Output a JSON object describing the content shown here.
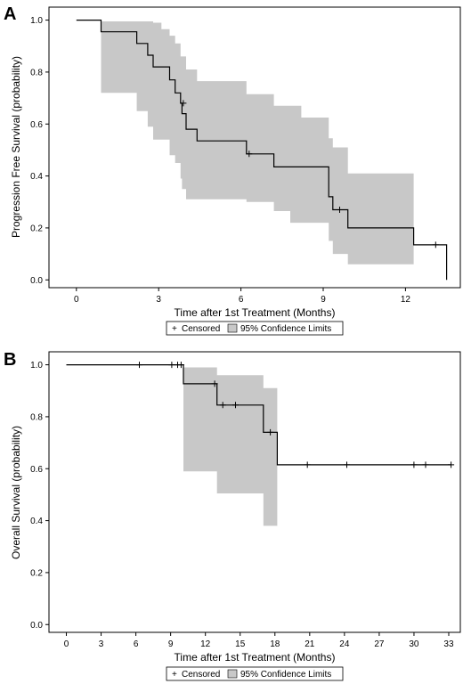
{
  "chart_data": [
    {
      "panel": "A",
      "type": "line",
      "subtype": "kaplan-meier-step",
      "xlabel": "Time after 1st Treatment (Months)",
      "ylabel": "Progression Free Survival (probability)",
      "xlim": [
        -1,
        14
      ],
      "ylim": [
        -0.03,
        1.05
      ],
      "xticks": [
        "0",
        "3",
        "6",
        "9",
        "12"
      ],
      "xtick_values": [
        0,
        3,
        6,
        9,
        12
      ],
      "yticks": [
        "0.0",
        "0.2",
        "0.4",
        "0.6",
        "0.8",
        "1.0"
      ],
      "ytick_values": [
        0,
        0.2,
        0.4,
        0.6,
        0.8,
        1.0
      ],
      "legend": {
        "censored": "Censored",
        "band": "95% Confidence Limits",
        "placement": "bottom-center"
      },
      "colors": {
        "band": "#c8c8c8",
        "line": "#000000"
      },
      "series": [
        {
          "role": "survival",
          "steps": [
            [
              0,
              1.0
            ],
            [
              0.9,
              0.955
            ],
            [
              2.2,
              0.91
            ],
            [
              2.6,
              0.865
            ],
            [
              2.8,
              0.82
            ],
            [
              3.4,
              0.77
            ],
            [
              3.6,
              0.72
            ],
            [
              3.8,
              0.68
            ],
            [
              3.85,
              0.64
            ],
            [
              4.0,
              0.58
            ],
            [
              4.4,
              0.535
            ],
            [
              6.2,
              0.485
            ],
            [
              7.2,
              0.435
            ],
            [
              9.2,
              0.32
            ],
            [
              9.35,
              0.27
            ],
            [
              9.9,
              0.2
            ],
            [
              12.3,
              0.135
            ],
            [
              13.5,
              0.0
            ]
          ],
          "end_x": 13.5
        },
        {
          "role": "lower_cl",
          "steps": [
            [
              0.9,
              0.72
            ],
            [
              2.2,
              0.65
            ],
            [
              2.6,
              0.59
            ],
            [
              2.8,
              0.54
            ],
            [
              3.4,
              0.48
            ],
            [
              3.6,
              0.45
            ],
            [
              3.8,
              0.39
            ],
            [
              3.85,
              0.35
            ],
            [
              4.0,
              0.31
            ],
            [
              6.2,
              0.3
            ],
            [
              7.2,
              0.265
            ],
            [
              7.8,
              0.22
            ],
            [
              9.2,
              0.15
            ],
            [
              9.35,
              0.1
            ],
            [
              9.9,
              0.06
            ]
          ],
          "end_x": 12.3
        },
        {
          "role": "upper_cl",
          "steps": [
            [
              0.9,
              0.995
            ],
            [
              2.8,
              0.99
            ],
            [
              3.1,
              0.965
            ],
            [
              3.4,
              0.94
            ],
            [
              3.6,
              0.91
            ],
            [
              3.8,
              0.86
            ],
            [
              4.0,
              0.81
            ],
            [
              4.4,
              0.765
            ],
            [
              6.2,
              0.715
            ],
            [
              7.2,
              0.67
            ],
            [
              8.2,
              0.625
            ],
            [
              9.2,
              0.545
            ],
            [
              9.35,
              0.51
            ],
            [
              9.9,
              0.41
            ]
          ],
          "end_x": 12.3
        }
      ],
      "censored": [
        [
          3.9,
          0.68
        ],
        [
          6.3,
          0.485
        ],
        [
          9.6,
          0.27
        ],
        [
          13.1,
          0.135
        ]
      ]
    },
    {
      "panel": "B",
      "type": "line",
      "subtype": "kaplan-meier-step",
      "xlabel": "Time after 1st Treatment (Months)",
      "ylabel": "Overall Survival (probability)",
      "xlim": [
        -1.5,
        34
      ],
      "ylim": [
        -0.03,
        1.05
      ],
      "xticks": [
        "0",
        "3",
        "6",
        "9",
        "12",
        "15",
        "18",
        "21",
        "24",
        "27",
        "30",
        "33"
      ],
      "xtick_values": [
        0,
        3,
        6,
        9,
        12,
        15,
        18,
        21,
        24,
        27,
        30,
        33
      ],
      "yticks": [
        "0.0",
        "0.2",
        "0.4",
        "0.6",
        "0.8",
        "1.0"
      ],
      "ytick_values": [
        0,
        0.2,
        0.4,
        0.6,
        0.8,
        1.0
      ],
      "legend": {
        "censored": "Censored",
        "band": "95% Confidence Limits",
        "placement": "bottom-center"
      },
      "colors": {
        "band": "#c8c8c8",
        "line": "#000000"
      },
      "series": [
        {
          "role": "survival",
          "steps": [
            [
              0,
              1.0
            ],
            [
              10.1,
              0.927
            ],
            [
              13.0,
              0.845
            ],
            [
              17.0,
              0.74
            ],
            [
              18.2,
              0.615
            ]
          ],
          "end_x": 33.2
        },
        {
          "role": "lower_cl",
          "steps": [
            [
              10.1,
              0.59
            ],
            [
              13.0,
              0.505
            ],
            [
              17.0,
              0.38
            ]
          ],
          "end_x": 18.2
        },
        {
          "role": "upper_cl",
          "steps": [
            [
              10.1,
              0.99
            ],
            [
              13.0,
              0.96
            ],
            [
              17.0,
              0.91
            ]
          ],
          "end_x": 18.2
        }
      ],
      "censored": [
        [
          6.3,
          1.0
        ],
        [
          9.1,
          1.0
        ],
        [
          9.6,
          1.0
        ],
        [
          9.9,
          1.0
        ],
        [
          12.8,
          0.927
        ],
        [
          13.5,
          0.845
        ],
        [
          14.6,
          0.845
        ],
        [
          17.6,
          0.74
        ],
        [
          20.8,
          0.615
        ],
        [
          24.2,
          0.615
        ],
        [
          30.0,
          0.615
        ],
        [
          31.0,
          0.615
        ],
        [
          33.2,
          0.615
        ]
      ]
    }
  ]
}
